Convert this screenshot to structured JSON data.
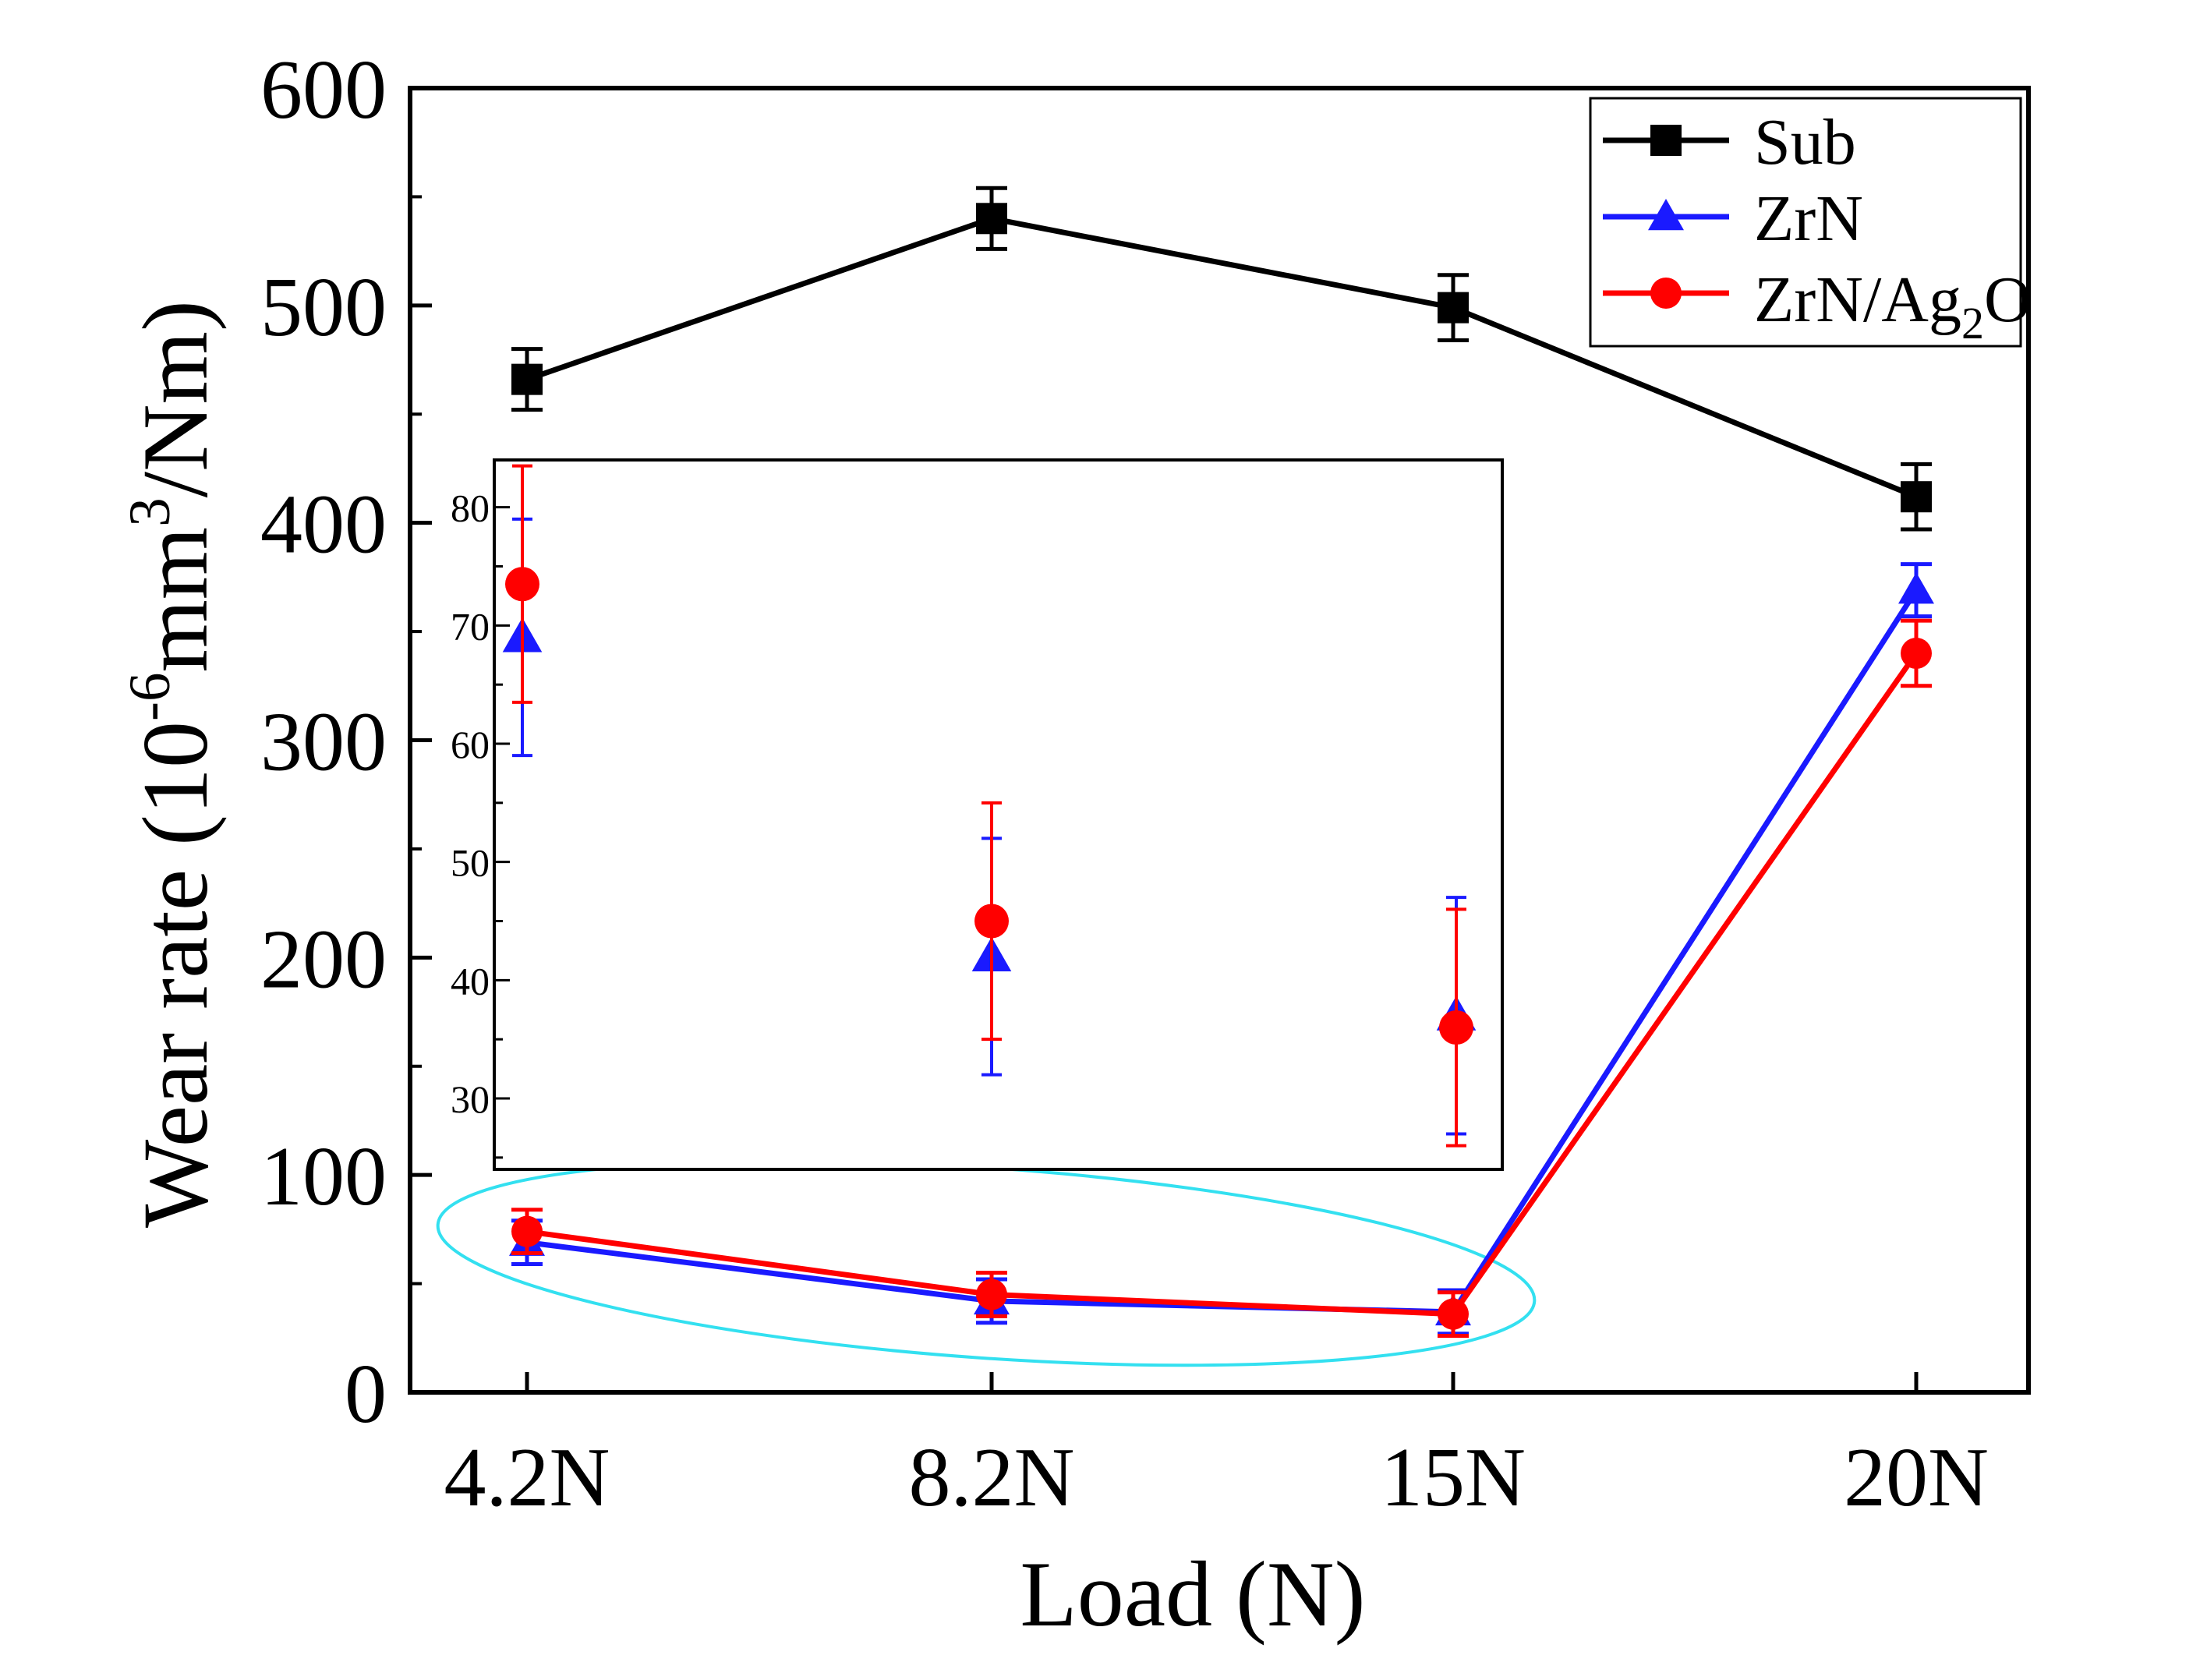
{
  "chart_data": [
    {
      "id": "main",
      "type": "line",
      "title": "",
      "xlabel": "Load (N)",
      "ylabel_parts": {
        "prefix": "Wear rate (10",
        "sup1": "-6",
        "mid": "mm",
        "sup2": "3",
        "suffix": "/Nm)"
      },
      "categories": [
        "4.2N",
        "8.2N",
        "15N",
        "20N"
      ],
      "ylim": [
        0,
        600
      ],
      "yticks": [
        0,
        100,
        200,
        300,
        400,
        500,
        600
      ],
      "ytick_labels": [
        "0",
        "100",
        "200",
        "300",
        "400",
        "500",
        "600"
      ],
      "legend_position": "top-right",
      "series": [
        {
          "name": "Sub",
          "color": "#000000",
          "marker": "square",
          "values": [
            466,
            540,
            499,
            412
          ],
          "errors": [
            14,
            14,
            15,
            15
          ]
        },
        {
          "name": "ZrN",
          "color": "#1a1aff",
          "marker": "triangle",
          "values": [
            69,
            42,
            37,
            369
          ],
          "errors": [
            10,
            10,
            10,
            12
          ]
        },
        {
          "name": "ZrN/Ag2O",
          "label_parts": {
            "prefix": "ZrN/Ag",
            "sub": "2",
            "suffix": "O"
          },
          "color": "#ff0000",
          "marker": "circle",
          "values": [
            74,
            45,
            36,
            340
          ],
          "errors": [
            10,
            10,
            10,
            15
          ]
        }
      ],
      "highlight": {
        "shape": "ellipse",
        "color": "#33e0f0",
        "encloses": [
          "4.2N",
          "8.2N",
          "15N"
        ]
      }
    },
    {
      "id": "inset",
      "type": "scatter",
      "categories": [
        "4.2N",
        "8.2N",
        "15N"
      ],
      "ylim": [
        24,
        84
      ],
      "yticks": [
        30,
        40,
        50,
        60,
        70,
        80
      ],
      "ytick_labels": [
        "30",
        "40",
        "50",
        "60",
        "70",
        "80"
      ],
      "series": [
        {
          "name": "ZrN",
          "color": "#1a1aff",
          "marker": "triangle",
          "values": [
            69,
            42,
            37
          ],
          "errors": [
            10,
            10,
            10
          ]
        },
        {
          "name": "ZrN/Ag2O",
          "color": "#ff0000",
          "marker": "circle",
          "values": [
            73.5,
            45,
            36
          ],
          "errors": [
            10,
            10,
            10
          ]
        }
      ]
    }
  ]
}
